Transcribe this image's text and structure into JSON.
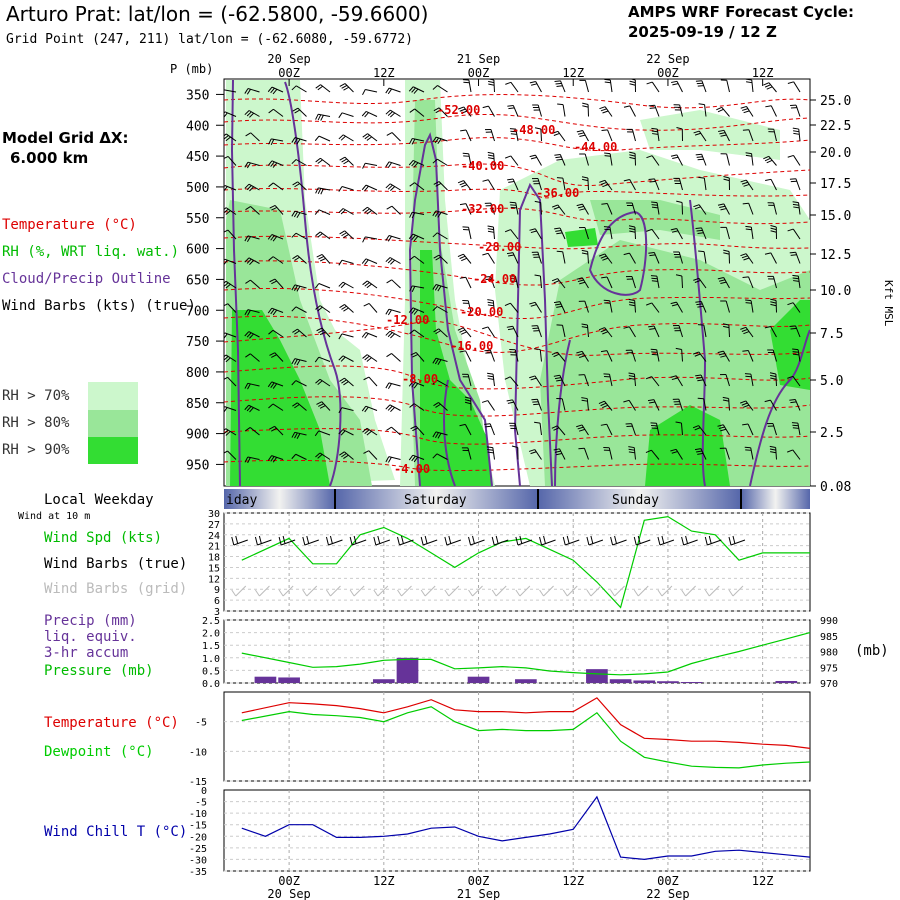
{
  "header": {
    "title": "Arturo Prat:  lat/lon = (-62.5800, -59.6600)",
    "subtitle": "Grid Point (247, 211) lat/lon = (-62.6080, -59.6772)",
    "cycle_line1": "AMPS WRF Forecast Cycle:",
    "cycle_line2": "2025-09-19 / 12  Z"
  },
  "left_panel": {
    "grid_label": "Model Grid ΔX:",
    "grid_value": "6.000 km",
    "legend_temperature": "Temperature (°C)",
    "legend_rh": "RH (%, WRT liq. wat.)",
    "legend_cloud": "Cloud/Precip Outline",
    "legend_wind": "Wind Barbs (kts) (true)",
    "rh_swatches": [
      {
        "label": "RH > 70%",
        "color": "#ccf7cc"
      },
      {
        "label": "RH > 80%",
        "color": "#99e699"
      },
      {
        "label": "RH > 90%",
        "color": "#33dd33"
      }
    ]
  },
  "colors": {
    "temperature": "#dd0000",
    "rh_label": "#00bb00",
    "cloud_outline": "#663399",
    "wind_chill": "#0000aa",
    "dewpoint": "#00cc00",
    "precip_bar": "#663399",
    "weekday_band": "#5566aa"
  },
  "time_axis": {
    "top_ticks": [
      "00Z",
      "12Z",
      "00Z",
      "12Z",
      "00Z",
      "12Z"
    ],
    "top_dates": [
      "20 Sep",
      "21 Sep",
      "22 Sep"
    ],
    "bottom_ticks": [
      "00Z",
      "12Z",
      "00Z",
      "12Z",
      "00Z",
      "12Z"
    ],
    "bottom_dates": [
      "20 Sep",
      "21 Sep",
      "22 Sep"
    ],
    "weekday_title": "Local Weekday",
    "wind_height": "Wind at 10 m",
    "weekdays": [
      "iday",
      "Saturday",
      "Sunday"
    ]
  },
  "chart_data": [
    {
      "type": "heatmap",
      "name": "cross-section",
      "ylabel_left": "P (mb)",
      "ylabel_right": "Kft MSL",
      "pressure_ticks": [
        350,
        400,
        450,
        500,
        550,
        600,
        650,
        700,
        750,
        800,
        850,
        900,
        950
      ],
      "height_ticks": [
        "25.0",
        "22.5",
        "20.0",
        "17.5",
        "15.0",
        "12.5",
        "10.0",
        "7.5",
        "5.0",
        "2.5",
        "0.08"
      ],
      "temperature_contour_labels": [
        "-52.00",
        "-48.00",
        "-44.00",
        "-40.00",
        "-36.00",
        "-32.00",
        "-28.00",
        "-24.00",
        "-20.00",
        "-16.00",
        "-12.00",
        "-8.00",
        "-4.00"
      ]
    },
    {
      "type": "line",
      "name": "wind",
      "label_speed": "Wind Spd (kts)",
      "label_barbs_true": "Wind Barbs (true)",
      "label_barbs_grid": "Wind Barbs (grid)",
      "y_ticks": [
        3,
        6,
        9,
        12,
        15,
        18,
        21,
        24,
        27,
        30
      ],
      "ylim": [
        3,
        30
      ],
      "x_hours": [
        -6,
        0,
        3,
        6,
        9,
        12,
        15,
        18,
        21,
        24,
        27,
        30,
        33,
        36,
        39,
        42,
        45,
        48,
        51,
        54,
        57,
        60,
        63,
        66
      ],
      "speed": [
        17,
        23,
        16,
        16,
        24,
        26,
        23,
        19,
        15,
        19,
        22,
        23,
        20,
        17,
        11,
        4,
        28,
        29,
        25,
        24,
        17,
        19,
        19,
        19
      ]
    },
    {
      "type": "bar",
      "name": "precip-pressure",
      "label_precip": "Precip (mm)",
      "label_precip2": "liq. equiv.",
      "label_precip3": "3-hr accum",
      "label_pressure": "Pressure (mb)",
      "right_unit": "(mb)",
      "y_ticks": [
        "0.0",
        "0.5",
        "1.0",
        "1.5",
        "2.0",
        "2.5"
      ],
      "ylim": [
        0,
        2.5
      ],
      "y2_ticks": [
        "970",
        "975",
        "980",
        "985",
        "990"
      ],
      "y2lim": [
        970,
        990
      ],
      "precip_hours": [
        -3,
        0,
        12,
        15,
        24,
        30,
        39,
        42,
        45,
        48,
        51,
        63
      ],
      "precip": [
        0.25,
        0.22,
        0.15,
        1.0,
        0.25,
        0.15,
        0.55,
        0.15,
        0.1,
        0.07,
        0.04,
        0.08
      ],
      "pressure_hours": [
        -6,
        0,
        3,
        6,
        9,
        12,
        15,
        18,
        21,
        24,
        27,
        30,
        33,
        36,
        39,
        42,
        45,
        48,
        51,
        54,
        57,
        60,
        63,
        66
      ],
      "pressure": [
        979.5,
        976.5,
        975.0,
        975.2,
        976.0,
        977.2,
        977.5,
        977.5,
        974.5,
        974.8,
        975.2,
        974.8,
        973.8,
        973.3,
        972.9,
        972.6,
        972.9,
        973.5,
        976.2,
        978.2,
        980.0,
        982.0,
        984.0,
        986.0
      ]
    },
    {
      "type": "line",
      "name": "temperature-dewpoint",
      "label_temp": "Temperature (°C)",
      "label_dew": "Dewpoint (°C)",
      "y_ticks": [
        -5,
        -10,
        -15
      ],
      "ylim": [
        -15,
        0
      ],
      "x_hours": [
        -6,
        0,
        3,
        6,
        9,
        12,
        15,
        18,
        21,
        24,
        27,
        30,
        33,
        36,
        39,
        42,
        45,
        48,
        51,
        54,
        57,
        60,
        63,
        66
      ],
      "temperature": [
        -3.5,
        -1.8,
        -2.0,
        -2.3,
        -2.8,
        -3.5,
        -2.5,
        -1.3,
        -3.0,
        -3.3,
        -3.3,
        -3.5,
        -3.3,
        -3.3,
        -1.0,
        -5.5,
        -7.8,
        -8.0,
        -8.3,
        -8.3,
        -8.5,
        -8.8,
        -9.0,
        -9.5
      ],
      "dewpoint": [
        -4.8,
        -3.3,
        -3.8,
        -4.0,
        -4.3,
        -5.0,
        -3.5,
        -2.5,
        -5.0,
        -6.5,
        -6.3,
        -6.5,
        -6.5,
        -6.3,
        -3.5,
        -8.3,
        -11.0,
        -11.8,
        -12.5,
        -12.7,
        -12.8,
        -12.3,
        -12.0,
        -11.8
      ]
    },
    {
      "type": "line",
      "name": "wind-chill",
      "label_chill": "Wind Chill T (°C)",
      "y_ticks": [
        -5,
        -10,
        -15,
        -20,
        -25,
        -30,
        -35
      ],
      "y_top": "0",
      "ylim": [
        -35,
        0
      ],
      "x_hours": [
        -6,
        -3,
        0,
        3,
        6,
        9,
        12,
        15,
        18,
        21,
        24,
        27,
        30,
        33,
        36,
        39,
        42,
        45,
        48,
        51,
        54,
        57,
        60,
        63,
        66
      ],
      "wind_chill": [
        -16.5,
        -20,
        -15,
        -15,
        -20.5,
        -20.5,
        -20,
        -19,
        -16.5,
        -16,
        -20,
        -22,
        -20.5,
        -19,
        -17,
        -3,
        -29,
        -30,
        -28.5,
        -28.5,
        -26.5,
        -26,
        -27,
        -28,
        -29
      ]
    }
  ]
}
